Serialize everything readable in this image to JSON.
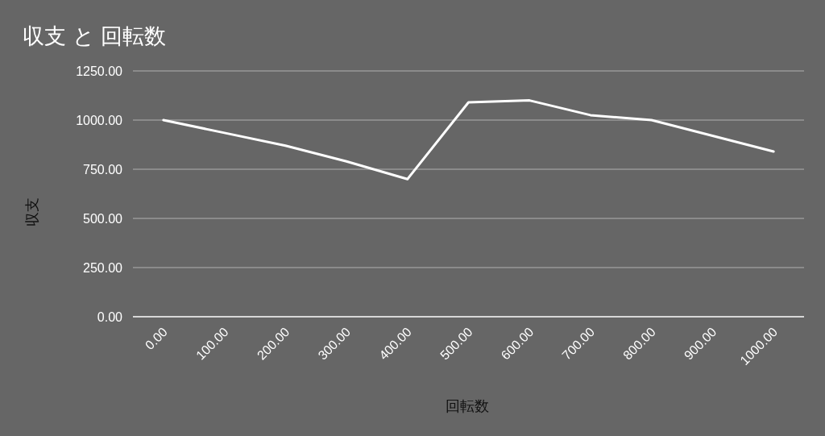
{
  "chart_data": {
    "type": "line",
    "title": "収支 と 回転数",
    "xlabel": "回転数",
    "ylabel": "収支",
    "categories": [
      "0.00",
      "100.00",
      "200.00",
      "300.00",
      "400.00",
      "500.00",
      "600.00",
      "700.00",
      "800.00",
      "900.00",
      "1000.00"
    ],
    "series": [
      {
        "color": "#ffffff",
        "values": [
          1000,
          935,
          870,
          790,
          700,
          1090,
          1100,
          1025,
          1000,
          920,
          840
        ]
      }
    ],
    "ylim": [
      0,
      1250
    ],
    "yticks": [
      {
        "value": 0,
        "label": "0.00"
      },
      {
        "value": 250,
        "label": "250.00"
      },
      {
        "value": 500,
        "label": "500.00"
      },
      {
        "value": 750,
        "label": "750.00"
      },
      {
        "value": 1000,
        "label": "1000.00"
      },
      {
        "value": 1250,
        "label": "1250.00"
      }
    ],
    "grid": "y"
  }
}
